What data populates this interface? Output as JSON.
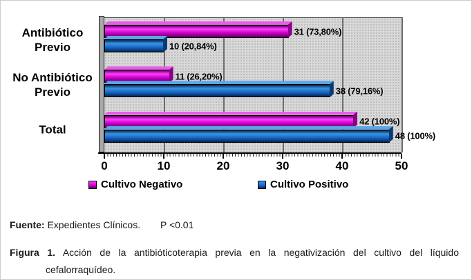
{
  "chart_data": {
    "type": "bar",
    "orientation": "horizontal",
    "categories": [
      "Antibiótico Previo",
      "No Antibiótico Previo",
      "Total"
    ],
    "series": [
      {
        "name": "Cultivo Negativo",
        "color": "#cc00cc",
        "color_light": "#ff3dff",
        "color_dark": "#5e005e",
        "cap_color": "#8a008a",
        "top_color": "#e95ce9",
        "values": [
          31,
          11,
          42
        ],
        "point_labels": [
          "31 (73,80%)",
          "11 (26,20%)",
          "42 (100%)"
        ]
      },
      {
        "name": "Cultivo Positivo",
        "color": "#1569c7",
        "color_light": "#3b94e0",
        "color_dark": "#06234f",
        "cap_color": "#0a3a75",
        "top_color": "#5aa6e6",
        "values": [
          10,
          38,
          48
        ],
        "point_labels": [
          "10 (20,84%)",
          "38 (79,16%)",
          "48 (100%)"
        ]
      }
    ],
    "xlim": [
      0,
      50
    ],
    "xticks": [
      0,
      10,
      20,
      30,
      40,
      50
    ],
    "grid": true,
    "legend_position": "bottom",
    "plot_bg": "#d8d8d8",
    "gridline_color": "#6e6e6e"
  },
  "caption": {
    "fuente_label": "Fuente:",
    "fuente_text": "Expedientes Clínicos.",
    "p_value": "P <0.01",
    "figura_label": "Figura 1.",
    "figura_text": "Acción de la antibióticoterapia previa en la negativización del cultivo del líquido cefalorraquídeo."
  }
}
